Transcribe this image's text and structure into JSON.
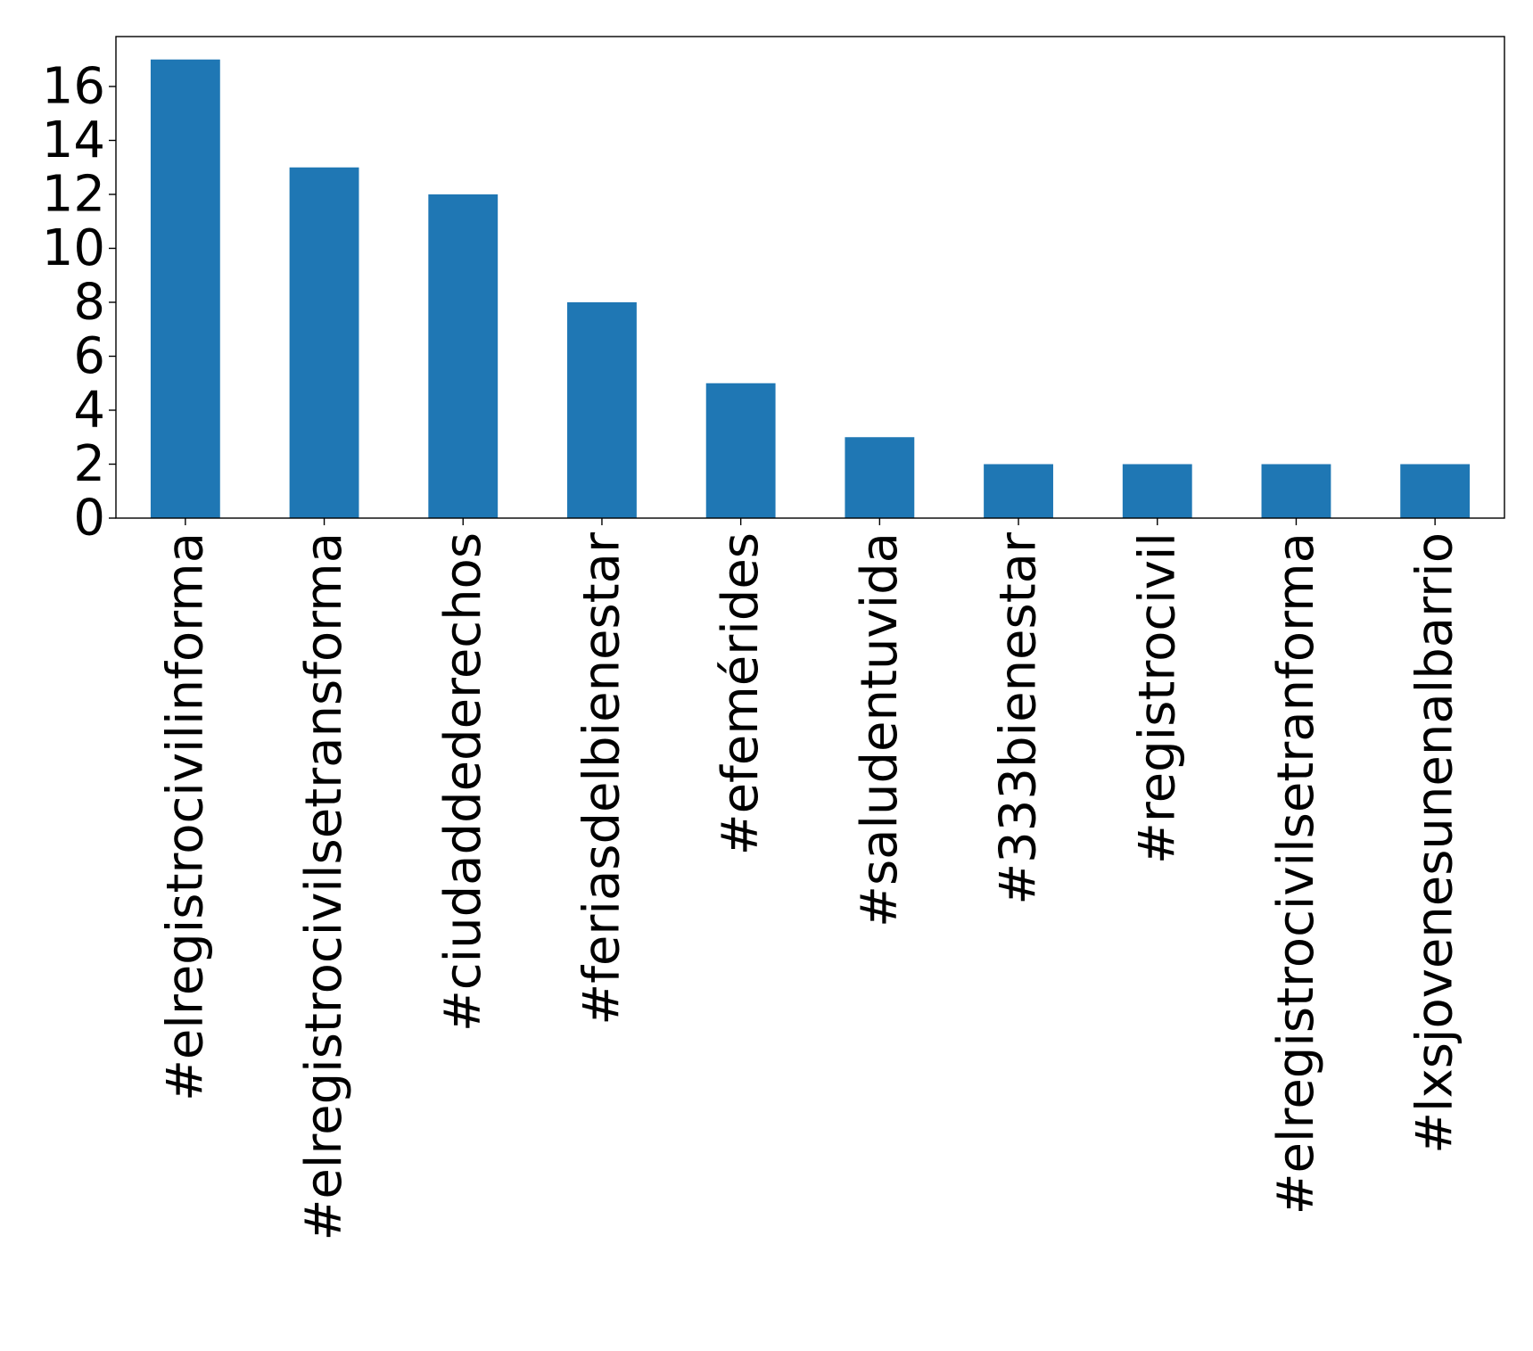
{
  "chart_data": {
    "type": "bar",
    "title": "",
    "xlabel": "",
    "ylabel": "",
    "categories": [
      "#elregistrocivilinforma",
      "#elregistrocivilsetransforma",
      "#ciudaddederechos",
      "#feriasdelbienestar",
      "#efemérides",
      "#saludentuvida",
      "#333bienestar",
      "#registrocivil",
      "#elregistrocivilsetranforma",
      "#lxsjovenesunenalbarrio"
    ],
    "values": [
      17,
      13,
      12,
      8,
      5,
      3,
      2,
      2,
      2,
      2
    ],
    "ylim": [
      0,
      17.85
    ],
    "yticks": [
      "0",
      "2",
      "4",
      "6",
      "8",
      "10",
      "12",
      "14",
      "16"
    ],
    "grid": false,
    "legend": "none",
    "bar_color": "#1f77b4"
  }
}
